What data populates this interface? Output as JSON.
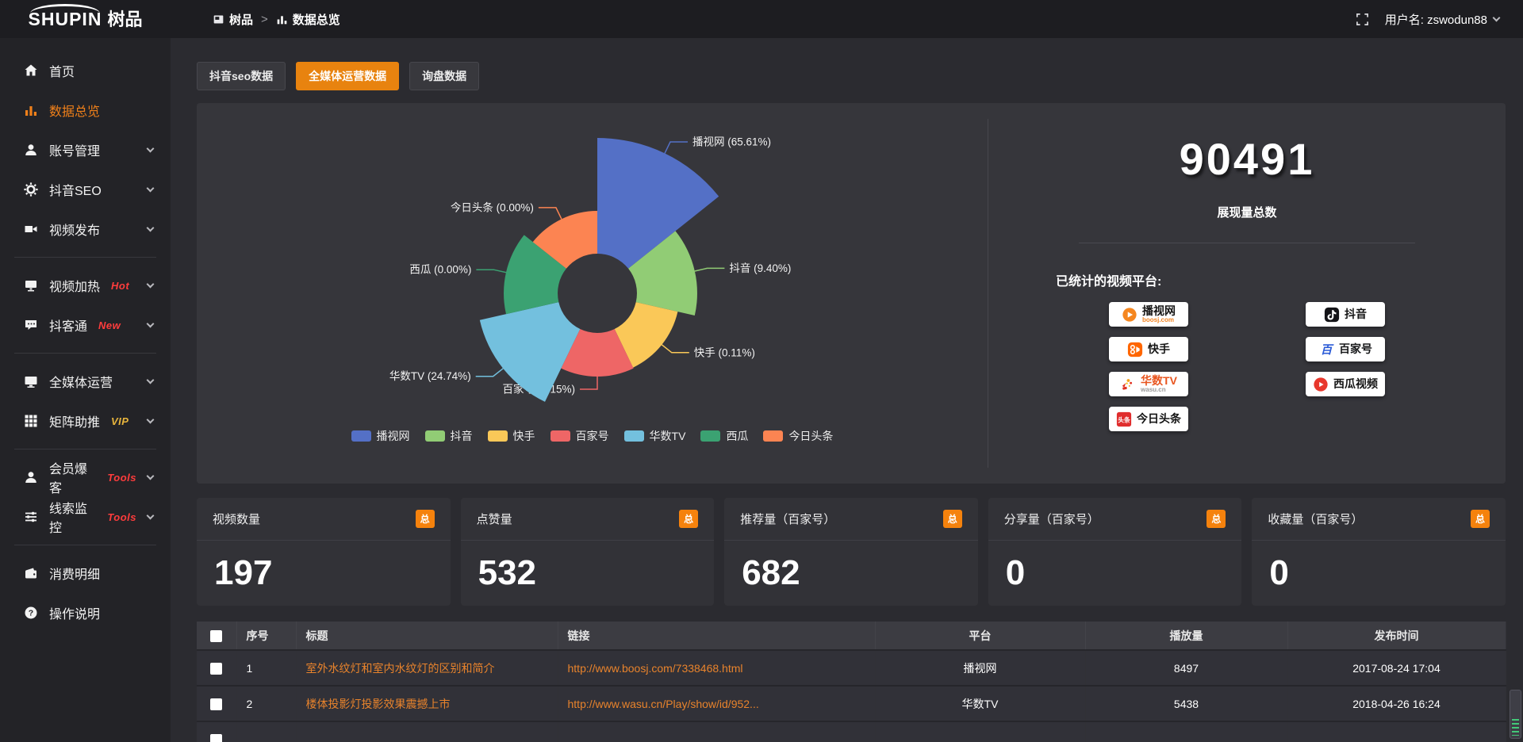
{
  "topbar": {
    "logo_text": "SHUPIN",
    "logo_cn": "树品",
    "breadcrumb": [
      {
        "label": "树品",
        "icon": "panel"
      },
      {
        "label": "数据总览",
        "icon": "chart"
      }
    ],
    "separator": ">",
    "user_label": "用户名: zswodun88"
  },
  "sidebar": {
    "items": [
      {
        "id": "home",
        "label": "首页",
        "icon": "home",
        "chevron": false
      },
      {
        "id": "overview",
        "label": "数据总览",
        "icon": "chart",
        "active": true,
        "chevron": false
      },
      {
        "id": "accounts",
        "label": "账号管理",
        "icon": "user",
        "chevron": true
      },
      {
        "id": "douyinseo",
        "label": "抖音SEO",
        "icon": "gear",
        "chevron": true
      },
      {
        "id": "publish",
        "label": "视频发布",
        "icon": "video",
        "chevron": true,
        "divider_after": true
      },
      {
        "id": "heat",
        "label": "视频加热",
        "icon": "display",
        "badge": "Hot",
        "badge_color": "#ff3c3c",
        "chevron": true
      },
      {
        "id": "douketong",
        "label": "抖客通",
        "icon": "chat",
        "badge": "New",
        "badge_color": "#ff3c3c",
        "chevron": true,
        "divider_after": true
      },
      {
        "id": "media",
        "label": "全媒体运营",
        "icon": "monitor",
        "chevron": true
      },
      {
        "id": "matrix",
        "label": "矩阵助推",
        "icon": "grid",
        "badge": "VIP",
        "badge_color": "#e7b43c",
        "chevron": true,
        "divider_after": true
      },
      {
        "id": "member",
        "label": "会员爆客",
        "icon": "user",
        "badge": "Tools",
        "badge_color": "#ff3c3c",
        "chevron": true
      },
      {
        "id": "clues",
        "label": "线索监控",
        "icon": "sliders",
        "badge": "Tools",
        "badge_color": "#ff3c3c",
        "chevron": true,
        "divider_after": true
      },
      {
        "id": "spend",
        "label": "消费明细",
        "icon": "wallet",
        "chevron": false
      },
      {
        "id": "help",
        "label": "操作说明",
        "icon": "help",
        "chevron": false
      }
    ]
  },
  "tabs": [
    {
      "label": "抖音seo数据",
      "active": false
    },
    {
      "label": "全媒体运营数据",
      "active": true
    },
    {
      "label": "询盘数据",
      "active": false
    }
  ],
  "chart_data": {
    "type": "pie",
    "subtype": "nightingale-rose",
    "title": "",
    "series": [
      {
        "name": "播视网",
        "percent": 65.61,
        "label": "播视网 (65.61%)",
        "color": "#5470c6"
      },
      {
        "name": "抖音",
        "percent": 9.4,
        "label": "抖音 (9.40%)",
        "color": "#91cc75"
      },
      {
        "name": "快手",
        "percent": 0.11,
        "label": "快手 (0.11%)",
        "color": "#fac858"
      },
      {
        "name": "百家号",
        "percent": 0.15,
        "label": "百家号 (0.15%)",
        "color": "#ee6666"
      },
      {
        "name": "华数TV",
        "percent": 24.74,
        "label": "华数TV (24.74%)",
        "color": "#73c0de"
      },
      {
        "name": "西瓜",
        "percent": 0.0,
        "label": "西瓜 (0.00%)",
        "color": "#3ba272"
      },
      {
        "name": "今日头条",
        "percent": 0.0,
        "label": "今日头条 (0.00%)",
        "color": "#fc8452"
      }
    ],
    "legend": [
      "播视网",
      "抖音",
      "快手",
      "百家号",
      "华数TV",
      "西瓜",
      "今日头条"
    ],
    "legend_position": "bottom",
    "display_radii": [
      196,
      126,
      104,
      105,
      152,
      118,
      104
    ],
    "inner_radius": 50
  },
  "overview": {
    "total": "90491",
    "total_label": "展现量总数",
    "platforms_title": "已统计的视频平台:",
    "platforms": [
      {
        "name": "播视网",
        "sub": "boosj.com",
        "sub_color": "#f28321",
        "icon": "boosj-logo"
      },
      {
        "name": "抖音",
        "icon": "douyin-logo"
      },
      {
        "name": "快手",
        "icon": "kuaishou-logo"
      },
      {
        "name": "百家号",
        "name_color": "#17181a",
        "icon": "baijiahao-logo"
      },
      {
        "name": "华数TV",
        "name_color": "#e8551f",
        "sub": "wasu.cn",
        "sub_color": "#9a9a9a",
        "icon": "wasu-logo"
      },
      {
        "name": "西瓜视频",
        "icon": "xigua-logo"
      },
      {
        "name": "今日头条",
        "icon": "toutiao-logo"
      }
    ]
  },
  "stat_cards": [
    {
      "title": "视频数量",
      "badge": "总",
      "value": "197"
    },
    {
      "title": "点赞量",
      "badge": "总",
      "value": "532"
    },
    {
      "title": "推荐量（百家号）",
      "badge": "总",
      "value": "682"
    },
    {
      "title": "分享量（百家号）",
      "badge": "总",
      "value": "0"
    },
    {
      "title": "收藏量（百家号）",
      "badge": "总",
      "value": "0"
    }
  ],
  "table": {
    "headers": [
      "序号",
      "标题",
      "链接",
      "平台",
      "播放量",
      "发布时间"
    ],
    "rows": [
      {
        "no": "1",
        "title": "室外水纹灯和室内水纹灯的区别和简介",
        "link": "http://www.boosj.com/7338468.html",
        "platform": "播视网",
        "plays": "8497",
        "time": "2017-08-24 17:04"
      },
      {
        "no": "2",
        "title": "楼体投影灯投影效果震撼上市",
        "link": "http://www.wasu.cn/Play/show/id/952...",
        "platform": "华数TV",
        "plays": "5438",
        "time": "2018-04-26 16:24"
      },
      {
        "no": "",
        "title": "",
        "link": "",
        "platform": "",
        "plays": "",
        "time": ""
      }
    ]
  },
  "colors": {
    "accent": "#e8830f",
    "link": "#e8832c",
    "badge": "#f5820d"
  }
}
